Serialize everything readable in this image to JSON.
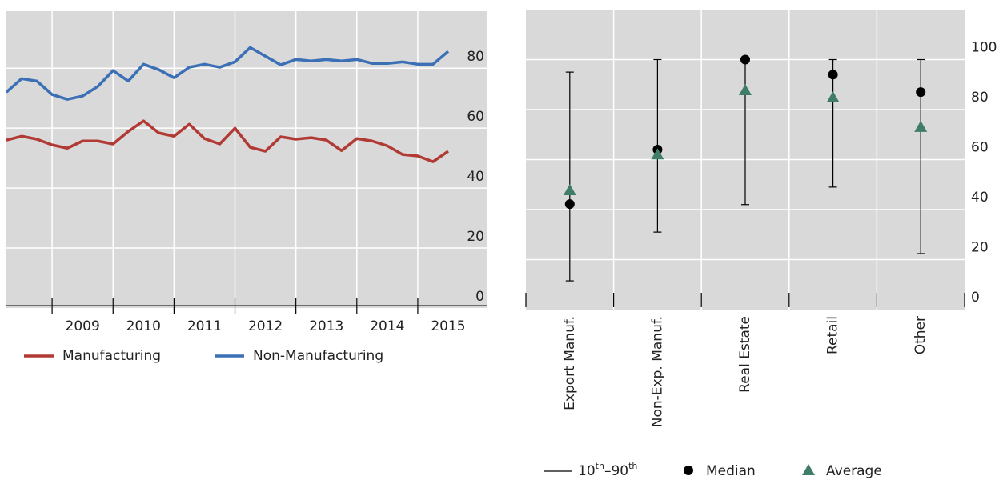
{
  "chart_data": [
    {
      "type": "line",
      "categories": [
        null,
        null,
        null,
        null,
        null,
        "2009",
        null,
        null,
        null,
        "2010",
        null,
        null,
        null,
        "2011",
        null,
        null,
        null,
        "2012",
        null,
        null,
        null,
        "2013",
        null,
        null,
        null,
        "2014",
        null,
        null,
        null,
        "2015"
      ],
      "series": [
        {
          "name": "Manufacturing",
          "color": "#b23a35",
          "values": [
            56,
            57.3,
            56.3,
            54.4,
            53.3,
            55.7,
            55.7,
            54.7,
            58.9,
            62.4,
            58.4,
            57.3,
            61.3,
            56.5,
            54.7,
            60,
            53.6,
            52.3,
            57.1,
            56.3,
            56.8,
            56,
            52.5,
            56.5,
            55.7,
            54.1,
            51.2,
            50.7,
            48.8,
            52.3
          ]
        },
        {
          "name": "Non-Manufacturing",
          "color": "#3b6fb6",
          "values": [
            72,
            76.5,
            75.7,
            71.2,
            69.6,
            70.7,
            73.9,
            79.2,
            75.7,
            81.3,
            79.5,
            76.8,
            80.3,
            81.3,
            80.3,
            82.1,
            86.9,
            84,
            81.1,
            82.9,
            82.4,
            82.9,
            82.4,
            82.9,
            81.6,
            81.6,
            82.1,
            81.3,
            81.3,
            85.6
          ]
        }
      ],
      "ylim": [
        0,
        99
      ],
      "yticks": [
        0,
        20,
        40,
        60,
        80
      ],
      "grid": true
    },
    {
      "type": "dot_range",
      "categories": [
        "Export Manuf.",
        "Non-Exp. Manuf.",
        "Real Estate",
        "Retail",
        "Other"
      ],
      "range": {
        "name_parts": [
          "10",
          "th",
          "–",
          "90",
          "th"
        ],
        "color": "#000000",
        "low": [
          11.5,
          31,
          42,
          49,
          22.4
        ],
        "high": [
          95,
          100,
          100,
          100,
          100
        ]
      },
      "series": [
        {
          "name": "Median",
          "marker": "circle",
          "color": "#000000",
          "values": [
            42.2,
            64,
            100,
            94,
            87
          ]
        },
        {
          "name": "Average",
          "marker": "triangle",
          "color": "#3f7d6a",
          "values": [
            47.7,
            62,
            87.7,
            84.8,
            73
          ]
        }
      ],
      "ylim": [
        0,
        120
      ],
      "yticks": [
        0,
        20,
        40,
        60,
        80,
        100
      ],
      "grid": true
    }
  ]
}
